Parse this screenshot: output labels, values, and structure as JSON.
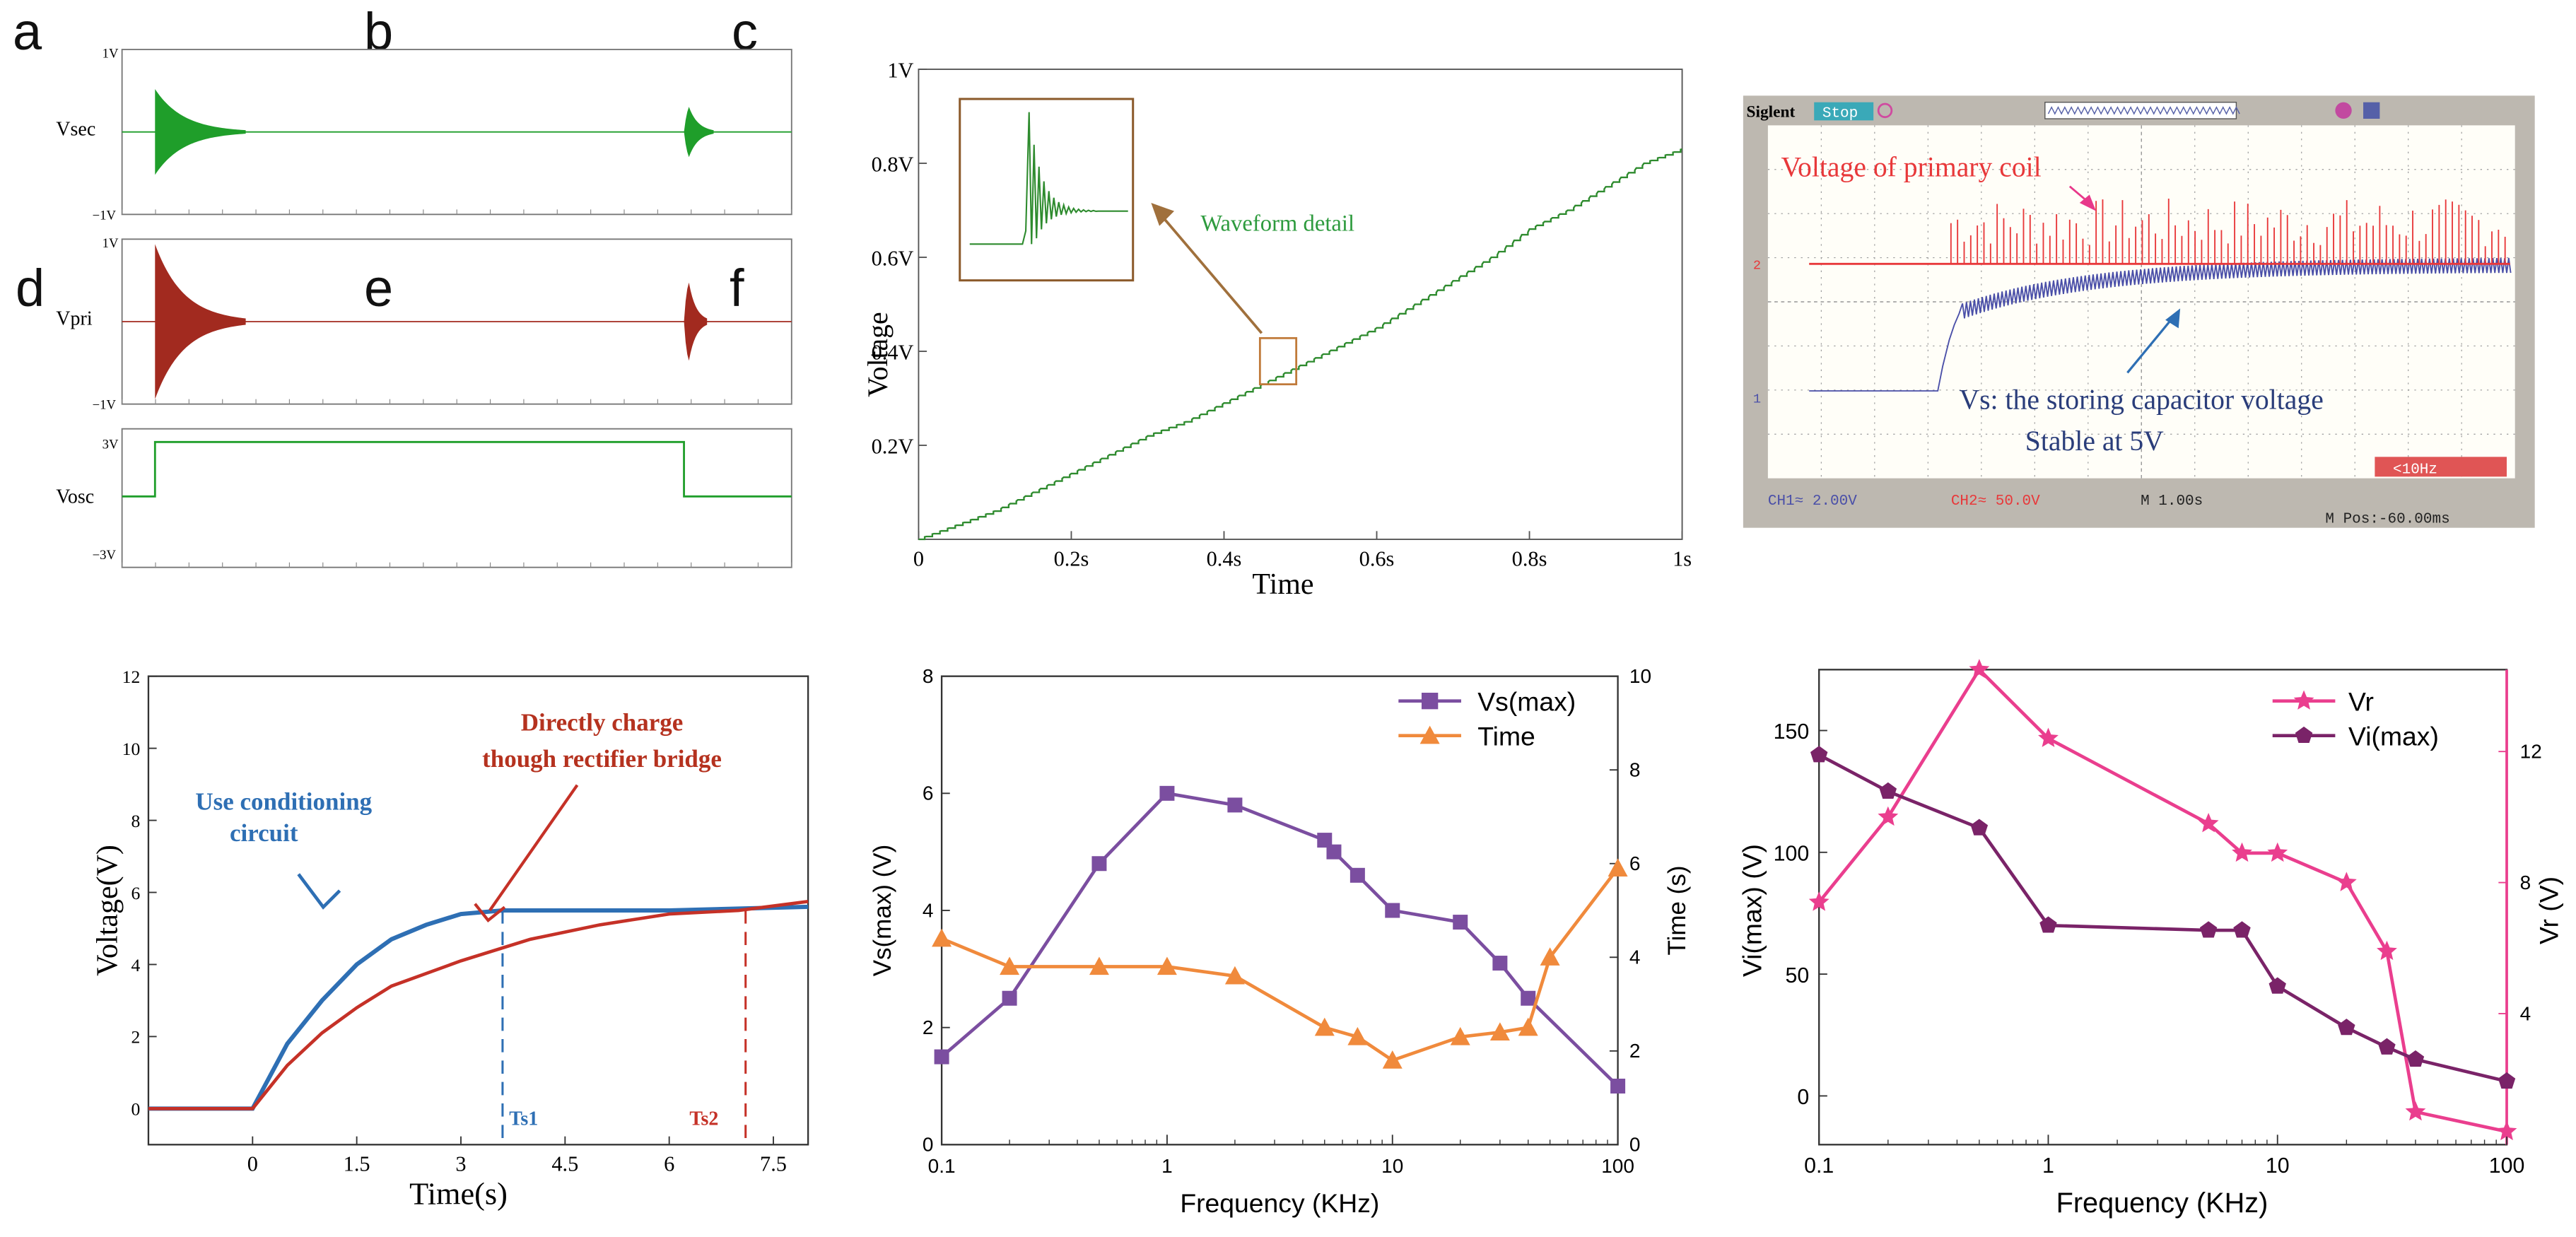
{
  "panels": {
    "a": "a",
    "b": "b",
    "c": "c",
    "d": "d",
    "e": "e",
    "f": "f"
  },
  "chart_data": [
    {
      "panel": "a",
      "type": "line",
      "subplots": [
        {
          "label": "Vsec",
          "ymax_label": "1V",
          "ymin_label": "−1V",
          "color": "#1f9e2a",
          "bursts_at_fraction": [
            0.0,
            0.79
          ],
          "decay": "damped oscillation"
        },
        {
          "label": "Vpri",
          "ymax_label": "1V",
          "ymin_label": "−1V",
          "color": "#a22a1f",
          "bursts_at_fraction": [
            0.0,
            0.79
          ],
          "decay": "damped oscillation"
        },
        {
          "label": "Vosc",
          "ymax_label": "3V",
          "ymin_label": "−3V",
          "color": "#1f9e2a",
          "high_from_fraction": 0.05,
          "high_to_fraction": 0.79
        }
      ]
    },
    {
      "panel": "b",
      "type": "line",
      "title": "",
      "xlabel": "Time",
      "ylabel": "Voltage",
      "xlim": [
        0,
        1
      ],
      "ylim": [
        0,
        1
      ],
      "x_ticks": [
        "0",
        "0.2s",
        "0.4s",
        "0.6s",
        "0.8s",
        "1s"
      ],
      "y_ticks": [
        "0.2V",
        "0.4V",
        "0.6V",
        "0.8V",
        "1V"
      ],
      "color": "#2e8b2e",
      "x": [
        0,
        0.05,
        0.1,
        0.15,
        0.2,
        0.25,
        0.3,
        0.35,
        0.4,
        0.45,
        0.5,
        0.55,
        0.6,
        0.65,
        0.7,
        0.75,
        0.8,
        0.85,
        0.9,
        0.95,
        1.0
      ],
      "y": [
        0.0,
        0.03,
        0.06,
        0.1,
        0.14,
        0.18,
        0.22,
        0.25,
        0.29,
        0.33,
        0.37,
        0.41,
        0.45,
        0.5,
        0.55,
        0.6,
        0.66,
        0.7,
        0.75,
        0.8,
        0.83
      ],
      "annotation": "Waveform detail",
      "annotation_color": "#2e9b3e"
    },
    {
      "panel": "c",
      "type": "line",
      "brand": "Siglent",
      "status": "Stop",
      "ch1_label": "CH1≈ 2.00V",
      "ch2_label": "CH2≈ 50.0V",
      "time_base": "M 1.00s",
      "position": "M Pos:-60.00ms",
      "trigger_readout": "<10Hz",
      "ch2_marker": "2",
      "ch1_marker": "1",
      "annotation_primary": "Voltage of primary coil",
      "annotation_vs_line1": "Vs: the storing capacitor voltage",
      "annotation_vs_line2": "Stable at 5V",
      "primary_color": "#e8383a",
      "vs_color": "#4a4fa8"
    },
    {
      "panel": "d",
      "type": "line",
      "xlabel": "Time(s)",
      "ylabel": "Voltage(V)",
      "xlim": [
        -1.5,
        8
      ],
      "ylim": [
        -1,
        12
      ],
      "x_ticks": [
        "0",
        "1.5",
        "3",
        "4.5",
        "6",
        "7.5"
      ],
      "x_tick_values": [
        0,
        1.5,
        3,
        4.5,
        6,
        7.5
      ],
      "y_ticks": [
        "0",
        "2",
        "4",
        "6",
        "8",
        "10",
        "12"
      ],
      "y_tick_values": [
        0,
        2,
        4,
        6,
        8,
        10,
        12
      ],
      "series": [
        {
          "name": "Use conditioning circuit",
          "color": "#2e6fb4",
          "x": [
            -1.5,
            0,
            0.5,
            1,
            1.5,
            2,
            2.5,
            3,
            3.6,
            4.5,
            6,
            7,
            8
          ],
          "y": [
            0,
            0,
            1.8,
            3.0,
            4.0,
            4.7,
            5.1,
            5.4,
            5.5,
            5.5,
            5.5,
            5.55,
            5.6
          ]
        },
        {
          "name": "Directly charge though rectifier bridge",
          "color": "#c53127",
          "x": [
            -1.5,
            0,
            0.5,
            1,
            1.5,
            2,
            3,
            4,
            5,
            6,
            7,
            8
          ],
          "y": [
            0,
            0,
            1.2,
            2.1,
            2.8,
            3.4,
            4.1,
            4.7,
            5.1,
            5.4,
            5.5,
            5.75
          ]
        }
      ],
      "markers": [
        {
          "label": "Ts1",
          "x": 3.6,
          "color": "#2e6fb4"
        },
        {
          "label": "Ts2",
          "x": 7.1,
          "color": "#c53127"
        }
      ],
      "annotation_blue_line1": "Use conditioning",
      "annotation_blue_line2": "circuit",
      "annotation_red_line1": "Directly charge",
      "annotation_red_line2": "though rectifier bridge"
    },
    {
      "panel": "e",
      "type": "line",
      "xlabel": "Frequency (KHz)",
      "ylabel": "Vs(max) (V)",
      "ylabel_right": "Time (s)",
      "xscale": "log",
      "xlim": [
        0.1,
        100
      ],
      "ylim": [
        0,
        8
      ],
      "ylim_right": [
        0,
        10
      ],
      "x_ticks": [
        "0.1",
        "1",
        "10",
        "100"
      ],
      "x_tick_values": [
        0.1,
        1,
        10,
        100
      ],
      "y_ticks": [
        "0",
        "2",
        "4",
        "6",
        "8"
      ],
      "y_tick_values": [
        0,
        2,
        4,
        6,
        8
      ],
      "y_ticks_right": [
        "0",
        "2",
        "4",
        "6",
        "8",
        "10"
      ],
      "y_tick_values_right": [
        0,
        2,
        4,
        6,
        8,
        10
      ],
      "series": [
        {
          "name": "Vs(max)",
          "color": "#7b4ea0",
          "marker": "square",
          "axis": "left",
          "x": [
            0.1,
            0.2,
            0.5,
            1,
            2,
            5,
            5.5,
            7,
            10,
            20,
            30,
            40,
            100
          ],
          "y": [
            1.5,
            2.5,
            4.8,
            6.0,
            5.8,
            5.2,
            5.0,
            4.6,
            4.0,
            3.8,
            3.1,
            2.5,
            1.0
          ]
        },
        {
          "name": "Time",
          "color": "#f08a3c",
          "marker": "triangle",
          "axis": "right",
          "x": [
            0.1,
            0.2,
            0.5,
            1,
            2,
            5,
            7,
            10,
            20,
            30,
            40,
            50,
            100
          ],
          "y": [
            4.4,
            3.8,
            3.8,
            3.8,
            3.6,
            2.5,
            2.3,
            1.8,
            2.3,
            2.4,
            2.5,
            4.0,
            5.9
          ]
        }
      ]
    },
    {
      "panel": "f",
      "type": "line",
      "xlabel": "Frequency (KHz)",
      "ylabel": "Vi(max) (V)",
      "ylabel_right": "Vr (V)",
      "xscale": "log",
      "xlim": [
        0.1,
        100
      ],
      "ylim": [
        -20,
        175
      ],
      "ylim_right": [
        0,
        14.5
      ],
      "x_ticks": [
        "0.1",
        "1",
        "10",
        "100"
      ],
      "x_tick_values": [
        0.1,
        1,
        10,
        100
      ],
      "y_ticks": [
        "0",
        "50",
        "100",
        "150"
      ],
      "y_tick_values": [
        0,
        50,
        100,
        150
      ],
      "y_ticks_right": [
        "4",
        "8",
        "12"
      ],
      "y_tick_values_right": [
        4,
        8,
        12
      ],
      "series": [
        {
          "name": "Vr",
          "color": "#ea3e8e",
          "marker": "star",
          "axis": "right",
          "x": [
            0.1,
            0.2,
            0.5,
            1,
            5,
            7,
            10,
            20,
            30,
            40,
            100
          ],
          "y": [
            7.4,
            10.0,
            14.5,
            12.4,
            9.8,
            8.9,
            8.9,
            8.0,
            5.9,
            1.0,
            0.4
          ]
        },
        {
          "name": "Vi(max)",
          "color": "#7a2368",
          "marker": "pentagon",
          "axis": "left",
          "x": [
            0.1,
            0.2,
            0.5,
            1,
            5,
            7,
            10,
            20,
            30,
            40,
            100
          ],
          "y": [
            140,
            125,
            110,
            70,
            68,
            68,
            45,
            28,
            20,
            15,
            6
          ]
        }
      ]
    }
  ]
}
